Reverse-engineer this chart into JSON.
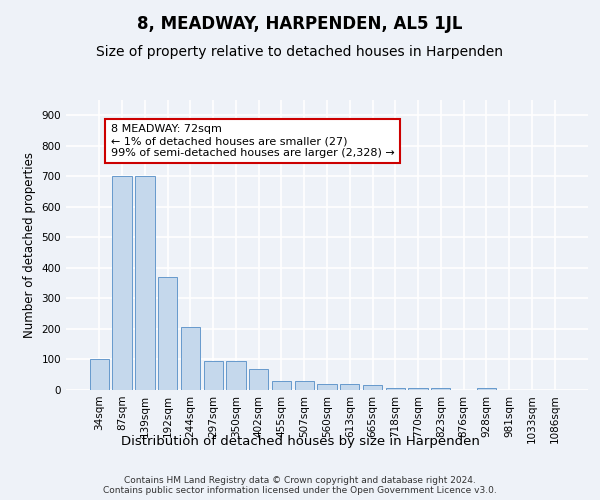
{
  "title": "8, MEADWAY, HARPENDEN, AL5 1JL",
  "subtitle": "Size of property relative to detached houses in Harpenden",
  "xlabel": "Distribution of detached houses by size in Harpenden",
  "ylabel": "Number of detached properties",
  "categories": [
    "34sqm",
    "87sqm",
    "139sqm",
    "192sqm",
    "244sqm",
    "297sqm",
    "350sqm",
    "402sqm",
    "455sqm",
    "507sqm",
    "560sqm",
    "613sqm",
    "665sqm",
    "718sqm",
    "770sqm",
    "823sqm",
    "876sqm",
    "928sqm",
    "981sqm",
    "1033sqm",
    "1086sqm"
  ],
  "values": [
    100,
    700,
    700,
    370,
    205,
    95,
    95,
    70,
    28,
    30,
    20,
    20,
    15,
    8,
    8,
    8,
    0,
    8,
    0,
    0,
    0
  ],
  "bar_color": "#c5d8ec",
  "bar_edge_color": "#6699cc",
  "annotation_text": "8 MEADWAY: 72sqm\n← 1% of detached houses are smaller (27)\n99% of semi-detached houses are larger (2,328) →",
  "annotation_box_color": "#ffffff",
  "annotation_box_edge_color": "#cc0000",
  "ylim": [
    0,
    950
  ],
  "yticks": [
    0,
    100,
    200,
    300,
    400,
    500,
    600,
    700,
    800,
    900
  ],
  "background_color": "#eef2f8",
  "grid_color": "#ffffff",
  "footnote": "Contains HM Land Registry data © Crown copyright and database right 2024.\nContains public sector information licensed under the Open Government Licence v3.0.",
  "title_fontsize": 12,
  "subtitle_fontsize": 10,
  "xlabel_fontsize": 9.5,
  "ylabel_fontsize": 8.5,
  "tick_fontsize": 7.5,
  "annotation_fontsize": 8,
  "footnote_fontsize": 6.5
}
